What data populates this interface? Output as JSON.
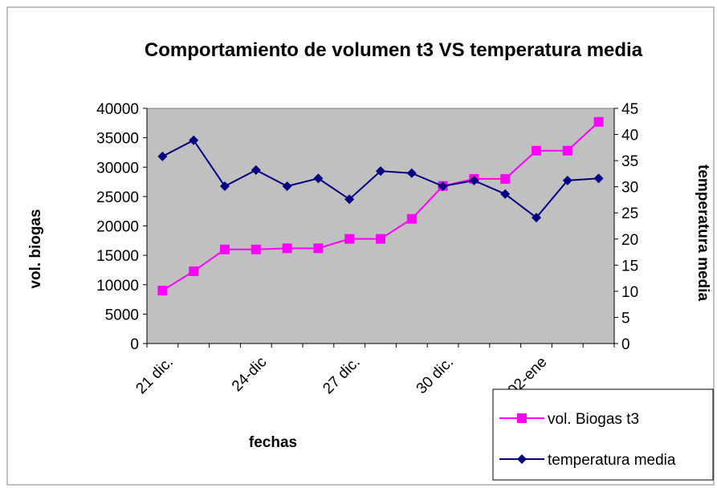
{
  "chart_data": {
    "type": "line",
    "title": "Comportamiento de volumen t3 VS temperatura media",
    "x_label": "fechas",
    "y_label": "vol. biogas",
    "y2_label": "temperatura media",
    "categories": [
      "21 dic.",
      null,
      null,
      "24-dic",
      null,
      null,
      "27 dic.",
      null,
      null,
      "30 dic.",
      null,
      null,
      "02-ene",
      null,
      null
    ],
    "series": [
      {
        "name": "vol. Biogas t3",
        "color": "#ff00ff",
        "marker": "square",
        "values": [
          9000,
          12300,
          16000,
          16000,
          16200,
          16200,
          17800,
          17800,
          21200,
          26800,
          28000,
          28000,
          32800,
          32800,
          37700
        ]
      },
      {
        "name": "temperatura media",
        "color": "#000080",
        "marker": "diamond",
        "axis": "y2",
        "values": [
          35.8,
          38.9,
          30.1,
          33.2,
          30.1,
          31.6,
          27.6,
          33,
          32.6,
          30.1,
          31.2,
          28.6,
          24.1,
          31.2,
          31.6
        ]
      }
    ],
    "ylim": [
      0,
      40000
    ],
    "yticks": [
      0,
      5000,
      10000,
      15000,
      20000,
      25000,
      30000,
      35000,
      40000
    ],
    "y2lim": [
      0,
      45
    ],
    "y2ticks": [
      0,
      5,
      10,
      15,
      20,
      25,
      30,
      35,
      40,
      45
    ],
    "grid": false,
    "legend": "bottom-right",
    "plot_background": "#c0c0c0"
  }
}
